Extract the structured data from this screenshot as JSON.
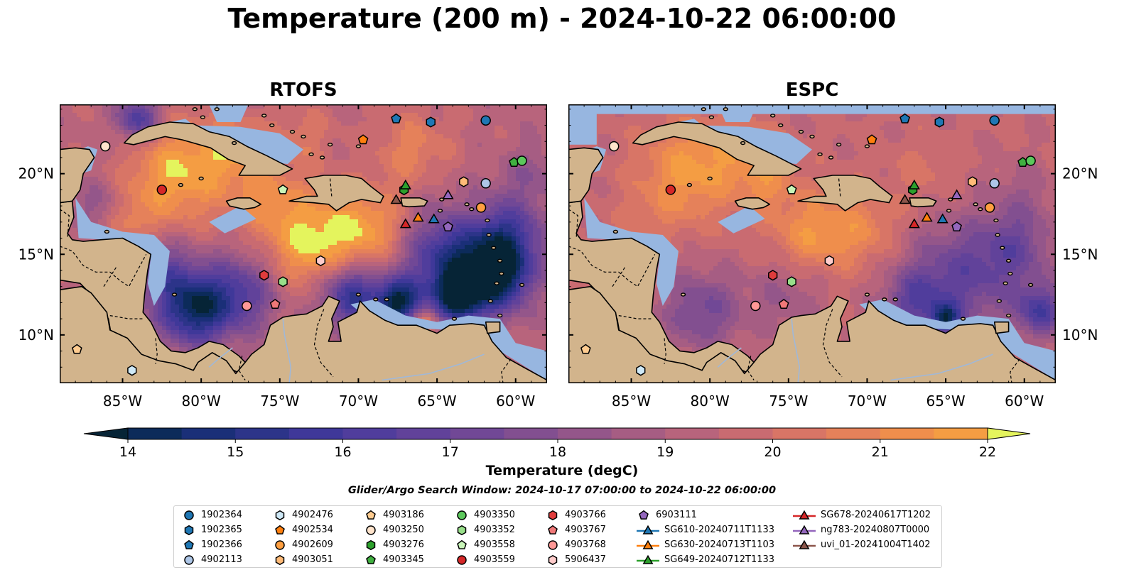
{
  "title": "Temperature (200 m) - 2024-10-22 06:00:00",
  "panels": [
    {
      "id": "rtofs",
      "title": "RTOFS",
      "variant": "rtofs"
    },
    {
      "id": "espc",
      "title": "ESPC",
      "variant": "espc"
    }
  ],
  "map_extent": {
    "lon": [
      -89,
      -58
    ],
    "lat": [
      7,
      24.3
    ]
  },
  "lon_ticks": [
    {
      "value": -85,
      "label": "85°W"
    },
    {
      "value": -80,
      "label": "80°W"
    },
    {
      "value": -75,
      "label": "75°W"
    },
    {
      "value": -70,
      "label": "70°W"
    },
    {
      "value": -65,
      "label": "65°W"
    },
    {
      "value": -60,
      "label": "60°W"
    }
  ],
  "lat_ticks": [
    {
      "value": 10,
      "label": "10°N"
    },
    {
      "value": 15,
      "label": "15°N"
    },
    {
      "value": 20,
      "label": "20°N"
    }
  ],
  "colorbar": {
    "min": 14,
    "max": 22,
    "step": 0.5,
    "ticks": [
      "14",
      "15",
      "16",
      "17",
      "18",
      "19",
      "20",
      "21",
      "22"
    ],
    "label": "Temperature (degC)",
    "extend": "both",
    "colors": [
      "#062436",
      "#0c2b5a",
      "#1a2f78",
      "#2c3489",
      "#3f3899",
      "#503d9c",
      "#61429a",
      "#714896",
      "#824f90",
      "#94568a",
      "#a65d83",
      "#b8647c",
      "#c96b71",
      "#d87566",
      "#e5815a",
      "#ef8e4c",
      "#f49d43",
      "#f8ae3f",
      "#f9c143",
      "#f4d84f",
      "#e4f45d"
    ],
    "under_color": "#062436",
    "over_color": "#e4f45d"
  },
  "map_colors": {
    "land": "#d2b48c",
    "shelf": "#97b6e0",
    "coast": "#000000",
    "border": "#000000",
    "river": "#a0b8d8"
  },
  "search_window": "Glider/Argo Search Window: 2024-10-17 07:00:00 to 2024-10-22 06:00:00",
  "platforms": [
    {
      "id": "1902364",
      "marker": "circle",
      "color": "#1f77b4",
      "lon": -61.9,
      "lat": 23.3
    },
    {
      "id": "1902365",
      "marker": "hexagon",
      "color": "#1f77b4",
      "lon": -65.4,
      "lat": 23.2
    },
    {
      "id": "1902366",
      "marker": "pentagon",
      "color": "#1f77b4",
      "lon": -67.6,
      "lat": 23.4
    },
    {
      "id": "4902113",
      "marker": "circle",
      "color": "#aec7e8",
      "lon": -61.9,
      "lat": 19.4
    },
    {
      "id": "4902476",
      "marker": "hexagon",
      "color": "#cfe9f7",
      "lon": -84.4,
      "lat": 7.8
    },
    {
      "id": "4902534",
      "marker": "pentagon",
      "color": "#ff7f0e",
      "lon": -69.7,
      "lat": 22.1
    },
    {
      "id": "4902609",
      "marker": "circle",
      "color": "#ff9f40",
      "lon": -62.2,
      "lat": 17.9
    },
    {
      "id": "4903051",
      "marker": "hexagon",
      "color": "#ffbb78",
      "lon": -63.3,
      "lat": 19.5
    },
    {
      "id": "4903186",
      "marker": "pentagon",
      "color": "#ffcc90",
      "lon": -87.9,
      "lat": 9.1
    },
    {
      "id": "4903250",
      "marker": "circle",
      "color": "#ffe4cc",
      "lon": -86.1,
      "lat": 21.7
    },
    {
      "id": "4903276",
      "marker": "hexagon",
      "color": "#2ca02c",
      "lon": -67.1,
      "lat": 19.0
    },
    {
      "id": "4903345",
      "marker": "pentagon",
      "color": "#40b040",
      "lon": -60.1,
      "lat": 20.7
    },
    {
      "id": "4903350",
      "marker": "circle",
      "color": "#5cc85c",
      "lon": -59.6,
      "lat": 20.8
    },
    {
      "id": "4903352",
      "marker": "hexagon",
      "color": "#98df8a",
      "lon": -74.8,
      "lat": 13.3
    },
    {
      "id": "4903558",
      "marker": "pentagon",
      "color": "#c8f5b8",
      "lon": -74.8,
      "lat": 19.0
    },
    {
      "id": "4903559",
      "marker": "circle",
      "color": "#d62728",
      "lon": -82.5,
      "lat": 19.0
    },
    {
      "id": "4903766",
      "marker": "hexagon",
      "color": "#e03c3c",
      "lon": -76.0,
      "lat": 13.7
    },
    {
      "id": "4903767",
      "marker": "pentagon",
      "color": "#f07878",
      "lon": -75.3,
      "lat": 11.9
    },
    {
      "id": "4903768",
      "marker": "circle",
      "color": "#ff9896",
      "lon": -77.1,
      "lat": 11.8
    },
    {
      "id": "5906437",
      "marker": "hexagon",
      "color": "#ffcccb",
      "lon": -72.4,
      "lat": 14.6
    },
    {
      "id": "6903111",
      "marker": "pentagon",
      "color": "#9467bd",
      "lon": -64.3,
      "lat": 16.7
    },
    {
      "id": "SG610-20240711T1133",
      "marker": "triangle",
      "color": "#1f77b4",
      "lon": -65.2,
      "lat": 17.2
    },
    {
      "id": "SG630-20240713T1103",
      "marker": "triangle",
      "color": "#ff7f0e",
      "lon": -66.2,
      "lat": 17.3
    },
    {
      "id": "SG649-20240712T1133",
      "marker": "triangle",
      "color": "#2ca02c",
      "lon": -67.0,
      "lat": 19.3
    },
    {
      "id": "SG678-20240617T1202",
      "marker": "triangle",
      "color": "#d62728",
      "lon": -67.0,
      "lat": 16.9
    },
    {
      "id": "ng783-20240807T0000",
      "marker": "triangle",
      "color": "#9467bd",
      "lon": -64.3,
      "lat": 18.7
    },
    {
      "id": "uvi_01-20241004T1402",
      "marker": "triangle",
      "color": "#8c564b",
      "lon": -67.6,
      "lat": 18.4
    }
  ]
}
